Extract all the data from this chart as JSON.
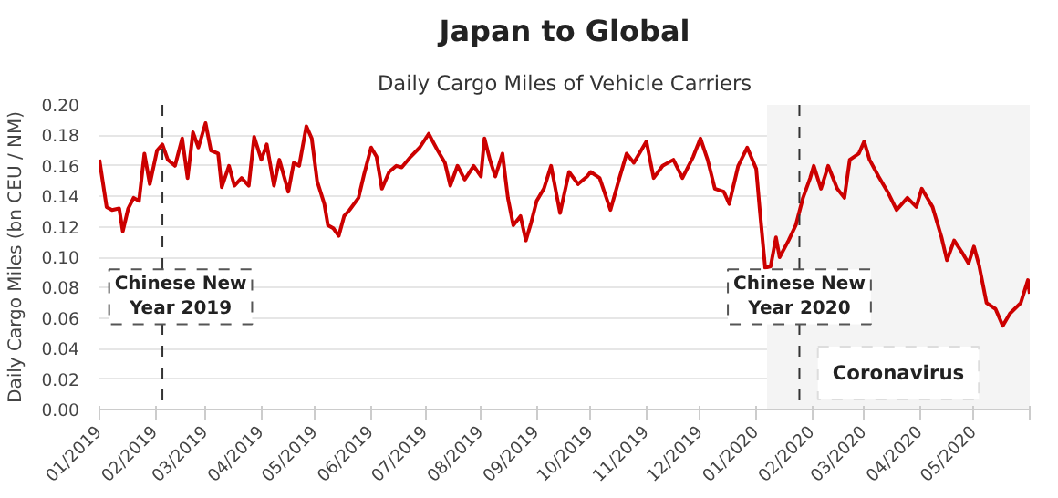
{
  "chart_data": {
    "type": "line",
    "title": "Japan to Global",
    "subtitle": "Daily Cargo Miles of Vehicle Carriers",
    "ylabel": "Daily Cargo Miles (bn CEU / NM)",
    "x": [
      "2019-01-01",
      "2019-01-05",
      "2019-01-08",
      "2019-01-12",
      "2019-01-14",
      "2019-01-17",
      "2019-01-20",
      "2019-01-23",
      "2019-01-26",
      "2019-01-29",
      "2019-02-02",
      "2019-02-05",
      "2019-02-08",
      "2019-02-12",
      "2019-02-16",
      "2019-02-19",
      "2019-02-22",
      "2019-02-25",
      "2019-03-01",
      "2019-03-04",
      "2019-03-08",
      "2019-03-10",
      "2019-03-14",
      "2019-03-17",
      "2019-03-21",
      "2019-03-25",
      "2019-03-28",
      "2019-04-01",
      "2019-04-04",
      "2019-04-08",
      "2019-04-11",
      "2019-04-16",
      "2019-04-19",
      "2019-04-22",
      "2019-04-26",
      "2019-04-29",
      "2019-05-02",
      "2019-05-06",
      "2019-05-08",
      "2019-05-11",
      "2019-05-14",
      "2019-05-17",
      "2019-05-20",
      "2019-05-25",
      "2019-05-28",
      "2019-06-01",
      "2019-06-04",
      "2019-06-07",
      "2019-06-11",
      "2019-06-15",
      "2019-06-18",
      "2019-06-23",
      "2019-06-28",
      "2019-07-03",
      "2019-07-08",
      "2019-07-12",
      "2019-07-15",
      "2019-07-19",
      "2019-07-23",
      "2019-07-28",
      "2019-08-01",
      "2019-08-03",
      "2019-08-06",
      "2019-08-09",
      "2019-08-13",
      "2019-08-16",
      "2019-08-19",
      "2019-08-23",
      "2019-08-26",
      "2019-08-29",
      "2019-09-01",
      "2019-09-05",
      "2019-09-09",
      "2019-09-14",
      "2019-09-19",
      "2019-09-24",
      "2019-09-29",
      "2019-10-01",
      "2019-10-06",
      "2019-10-12",
      "2019-10-17",
      "2019-10-21",
      "2019-10-25",
      "2019-11-01",
      "2019-11-05",
      "2019-11-10",
      "2019-11-16",
      "2019-11-21",
      "2019-11-27",
      "2019-12-01",
      "2019-12-05",
      "2019-12-09",
      "2019-12-14",
      "2019-12-17",
      "2019-12-22",
      "2019-12-27",
      "2020-01-01",
      "2020-01-03",
      "2020-01-06",
      "2020-01-09",
      "2020-01-12",
      "2020-01-14",
      "2020-01-19",
      "2020-01-23",
      "2020-01-27",
      "2020-01-31",
      "2020-02-02",
      "2020-02-06",
      "2020-02-10",
      "2020-02-15",
      "2020-02-19",
      "2020-02-22",
      "2020-02-27",
      "2020-03-01",
      "2020-03-04",
      "2020-03-09",
      "2020-03-14",
      "2020-03-19",
      "2020-03-25",
      "2020-03-30",
      "2020-04-02",
      "2020-04-08",
      "2020-04-13",
      "2020-04-16",
      "2020-04-20",
      "2020-04-25",
      "2020-04-28",
      "2020-05-01",
      "2020-05-04",
      "2020-05-08",
      "2020-05-13",
      "2020-05-17",
      "2020-05-21",
      "2020-05-27",
      "2020-05-31",
      "2020-06-01"
    ],
    "series": [
      {
        "color": "#cc0000",
        "values": [
          0.164,
          0.133,
          0.131,
          0.132,
          0.117,
          0.132,
          0.139,
          0.137,
          0.168,
          0.148,
          0.17,
          0.174,
          0.164,
          0.16,
          0.178,
          0.152,
          0.182,
          0.172,
          0.188,
          0.17,
          0.168,
          0.146,
          0.16,
          0.147,
          0.152,
          0.147,
          0.179,
          0.164,
          0.174,
          0.147,
          0.164,
          0.143,
          0.162,
          0.16,
          0.186,
          0.178,
          0.15,
          0.135,
          0.121,
          0.119,
          0.114,
          0.127,
          0.131,
          0.139,
          0.154,
          0.172,
          0.166,
          0.145,
          0.156,
          0.16,
          0.159,
          0.166,
          0.172,
          0.181,
          0.17,
          0.162,
          0.147,
          0.16,
          0.151,
          0.16,
          0.153,
          0.178,
          0.164,
          0.153,
          0.168,
          0.139,
          0.121,
          0.127,
          0.111,
          0.123,
          0.137,
          0.145,
          0.16,
          0.129,
          0.156,
          0.148,
          0.153,
          0.156,
          0.152,
          0.131,
          0.152,
          0.168,
          0.162,
          0.176,
          0.152,
          0.16,
          0.164,
          0.152,
          0.166,
          0.178,
          0.164,
          0.145,
          0.143,
          0.135,
          0.16,
          0.172,
          0.158,
          0.131,
          0.093,
          0.094,
          0.113,
          0.1,
          0.111,
          0.121,
          0.139,
          0.152,
          0.16,
          0.145,
          0.16,
          0.145,
          0.139,
          0.164,
          0.168,
          0.176,
          0.164,
          0.153,
          0.143,
          0.131,
          0.139,
          0.133,
          0.145,
          0.133,
          0.113,
          0.098,
          0.111,
          0.102,
          0.096,
          0.107,
          0.094,
          0.07,
          0.066,
          0.055,
          0.063,
          0.07,
          0.085,
          0.076
        ]
      }
    ],
    "xlim": [
      "2019-01-01",
      "2020-06-01"
    ],
    "xticks": [
      {
        "value": "2019-01-01",
        "label": "01/2019"
      },
      {
        "value": "2019-02-01",
        "label": "02/2019"
      },
      {
        "value": "2019-03-01",
        "label": "03/2019"
      },
      {
        "value": "2019-04-01",
        "label": "04/2019"
      },
      {
        "value": "2019-05-01",
        "label": "05/2019"
      },
      {
        "value": "2019-06-01",
        "label": "06/2019"
      },
      {
        "value": "2019-07-01",
        "label": "07/2019"
      },
      {
        "value": "2019-08-01",
        "label": "08/2019"
      },
      {
        "value": "2019-09-01",
        "label": "09/2019"
      },
      {
        "value": "2019-10-01",
        "label": "10/2019"
      },
      {
        "value": "2019-11-01",
        "label": "11/2019"
      },
      {
        "value": "2019-12-01",
        "label": "12/2019"
      },
      {
        "value": "2020-01-01",
        "label": "01/2020"
      },
      {
        "value": "2020-02-01",
        "label": "02/2020"
      },
      {
        "value": "2020-03-01",
        "label": "03/2020"
      },
      {
        "value": "2020-04-01",
        "label": "04/2020"
      },
      {
        "value": "2020-05-01",
        "label": "05/2020"
      },
      {
        "value": "2020-06-01",
        "label": null
      }
    ],
    "ylim": [
      0,
      0.2
    ],
    "yticks": [
      {
        "value": 0,
        "label": "0.00"
      },
      {
        "value": 0.02,
        "label": "0.02"
      },
      {
        "value": 0.04,
        "label": "0.04"
      },
      {
        "value": 0.06,
        "label": "0.06"
      },
      {
        "value": 0.08,
        "label": "0.08"
      },
      {
        "value": 0.1,
        "label": "0.10"
      },
      {
        "value": 0.12,
        "label": "0.12"
      },
      {
        "value": 0.14,
        "label": "0.14"
      },
      {
        "value": 0.16,
        "label": "0.16"
      },
      {
        "value": 0.18,
        "label": "0.18"
      },
      {
        "value": 0.2,
        "label": "0.20"
      }
    ],
    "ref_lines": [
      {
        "axis": "x",
        "value": "2019-02-05",
        "label": "Chinese New Year 2019",
        "line_style": "dashed",
        "color": "#333333"
      },
      {
        "axis": "x",
        "value": "2020-01-25",
        "label": "Chinese New Year 2020",
        "line_style": "dashed",
        "color": "#333333"
      }
    ],
    "bands": [
      {
        "axis": "x",
        "from": "2020-01-07",
        "to": "2020-06-01",
        "label": "Coronavirus",
        "color": "#f4f4f4"
      }
    ],
    "grid": "y",
    "marker": "none",
    "line_style": "solid"
  }
}
